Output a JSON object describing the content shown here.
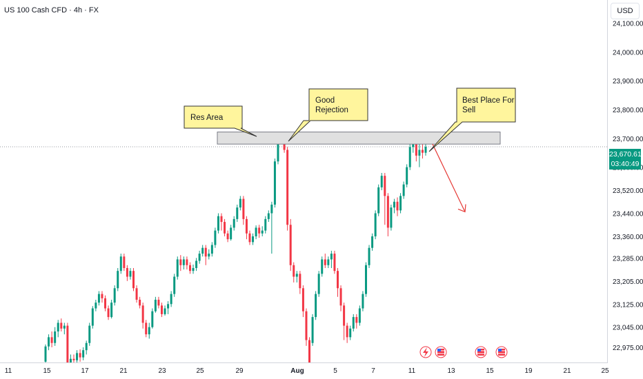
{
  "header": {
    "symbol_line": "US 100 Cash CFD · 4h · FX",
    "currency": "USD"
  },
  "last_price": {
    "value": "23,670.61",
    "countdown": "03:40:49",
    "color": "#089981"
  },
  "colors": {
    "up": "#089981",
    "down": "#f23645",
    "grid_line": "#d1d4dc",
    "callout_fill": "#fff59d",
    "zone_fill": "#e0e0e0",
    "arrow": "#e53935"
  },
  "annotations": {
    "res_area": "Res Area",
    "good_rejection": [
      "Good",
      "Rejection"
    ],
    "best_place": [
      "Best Place For",
      "Sell"
    ]
  },
  "event_icons": [
    "flash-icon",
    "us-flag-icon",
    "us-flag-icon",
    "us-flag-icon"
  ],
  "chart_data": {
    "type": "candlestick",
    "title": "US 100 Cash CFD · 4h · FX",
    "y_unit": "USD",
    "x_ticks": [
      "11",
      "15",
      "17",
      "19",
      "21",
      "23",
      "25",
      "27",
      "29",
      "Aug",
      "3",
      "5",
      "7",
      "9",
      "11",
      "13",
      "15",
      "17",
      "19",
      "21",
      "23",
      "25"
    ],
    "x_tick_labels_visible": [
      "11",
      "15",
      "17",
      "21",
      "23",
      "25",
      "29",
      "Aug",
      "5",
      "7",
      "11",
      "13",
      "15",
      "19",
      "21",
      "25"
    ],
    "y_ticks": [
      22975,
      23045,
      23125,
      23205,
      23285,
      23360,
      23440,
      23520,
      23600,
      23700,
      23800,
      23900,
      24000,
      24100
    ],
    "y_tick_labels": [
      "22,975.00",
      "23,045.00",
      "23,125.00",
      "23,205.00",
      "23,285.00",
      "23,360.00",
      "23,440.00",
      "23,520.00",
      "23,600.00",
      "23,700.00",
      "23,800.00",
      "23,900.00",
      "24,000.00",
      "24,100.00"
    ],
    "y_range": [
      22920,
      24180
    ],
    "resistance_zone": [
      23680,
      23722
    ],
    "last_price": 23670.61,
    "projection_target": 23445,
    "candles": [
      [
        22925,
        22978,
        22905,
        22985
      ],
      [
        22978,
        23010,
        22965,
        23020
      ],
      [
        23010,
        22990,
        22975,
        23030
      ],
      [
        22990,
        23030,
        22980,
        23045
      ],
      [
        23030,
        23060,
        23010,
        23070
      ],
      [
        23060,
        23040,
        23030,
        23075
      ],
      [
        23040,
        23050,
        23020,
        23060
      ],
      [
        23050,
        22920,
        22900,
        23060
      ],
      [
        22920,
        22935,
        22905,
        22950
      ],
      [
        22935,
        22930,
        22915,
        22950
      ],
      [
        22930,
        22955,
        22920,
        22965
      ],
      [
        22955,
        22940,
        22925,
        22968
      ],
      [
        22940,
        22965,
        22930,
        22975
      ],
      [
        22965,
        22990,
        22950,
        22998
      ],
      [
        22990,
        23050,
        22980,
        23060
      ],
      [
        23050,
        23110,
        23040,
        23118
      ],
      [
        23110,
        23130,
        23100,
        23140
      ],
      [
        23130,
        23160,
        23120,
        23170
      ],
      [
        23160,
        23145,
        23130,
        23170
      ],
      [
        23145,
        23110,
        23100,
        23155
      ],
      [
        23110,
        23080,
        23070,
        23120
      ],
      [
        23080,
        23130,
        23075,
        23140
      ],
      [
        23130,
        23180,
        23120,
        23190
      ],
      [
        23180,
        23240,
        23170,
        23250
      ],
      [
        23240,
        23290,
        23230,
        23300
      ],
      [
        23290,
        23250,
        23240,
        23300
      ],
      [
        23250,
        23220,
        23205,
        23260
      ],
      [
        23220,
        23240,
        23210,
        23250
      ],
      [
        23240,
        23180,
        23170,
        23250
      ],
      [
        23180,
        23140,
        23130,
        23190
      ],
      [
        23140,
        23120,
        23110,
        23150
      ],
      [
        23120,
        23060,
        23040,
        23130
      ],
      [
        23060,
        23020,
        23010,
        23070
      ],
      [
        23020,
        23045,
        23005,
        23060
      ],
      [
        23045,
        23100,
        23040,
        23110
      ],
      [
        23100,
        23140,
        23095,
        23150
      ],
      [
        23140,
        23120,
        23110,
        23150
      ],
      [
        23120,
        23090,
        23080,
        23130
      ],
      [
        23090,
        23110,
        23085,
        23120
      ],
      [
        23110,
        23125,
        23090,
        23135
      ],
      [
        23125,
        23160,
        23115,
        23170
      ],
      [
        23160,
        23220,
        23150,
        23230
      ],
      [
        23220,
        23280,
        23210,
        23290
      ],
      [
        23280,
        23260,
        23240,
        23295
      ],
      [
        23260,
        23280,
        23245,
        23290
      ],
      [
        23280,
        23260,
        23245,
        23290
      ],
      [
        23260,
        23240,
        23230,
        23270
      ],
      [
        23240,
        23250,
        23230,
        23262
      ],
      [
        23250,
        23275,
        23240,
        23285
      ],
      [
        23275,
        23300,
        23265,
        23310
      ],
      [
        23300,
        23320,
        23290,
        23330
      ],
      [
        23320,
        23290,
        23260,
        23330
      ],
      [
        23290,
        23300,
        23280,
        23315
      ],
      [
        23300,
        23330,
        23290,
        23340
      ],
      [
        23330,
        23380,
        23320,
        23390
      ],
      [
        23380,
        23430,
        23370,
        23440
      ],
      [
        23430,
        23410,
        23380,
        23440
      ],
      [
        23410,
        23370,
        23360,
        23420
      ],
      [
        23370,
        23350,
        23340,
        23380
      ],
      [
        23350,
        23390,
        23345,
        23400
      ],
      [
        23390,
        23420,
        23380,
        23430
      ],
      [
        23420,
        23460,
        23410,
        23470
      ],
      [
        23460,
        23490,
        23450,
        23500
      ],
      [
        23490,
        23420,
        23400,
        23500
      ],
      [
        23420,
        23370,
        23350,
        23430
      ],
      [
        23370,
        23340,
        23330,
        23380
      ],
      [
        23340,
        23360,
        23330,
        23370
      ],
      [
        23360,
        23390,
        23350,
        23398
      ],
      [
        23390,
        23370,
        23355,
        23400
      ],
      [
        23370,
        23380,
        23360,
        23395
      ],
      [
        23380,
        23420,
        23370,
        23430
      ],
      [
        23420,
        23440,
        23410,
        23450
      ],
      [
        23440,
        23470,
        23300,
        23480
      ],
      [
        23470,
        23620,
        23460,
        23630
      ],
      [
        23620,
        23690,
        23610,
        23700
      ],
      [
        23690,
        23700,
        23680,
        23712
      ],
      [
        23700,
        23660,
        23650,
        23710
      ],
      [
        23660,
        23400,
        23380,
        23670
      ],
      [
        23400,
        23260,
        23240,
        23420
      ],
      [
        23260,
        23220,
        23200,
        23270
      ],
      [
        23220,
        23230,
        23200,
        23240
      ],
      [
        23230,
        23180,
        23160,
        23240
      ],
      [
        23180,
        23100,
        23080,
        23190
      ],
      [
        23100,
        23000,
        22980,
        23110
      ],
      [
        23000,
        22920,
        22900,
        23010
      ],
      [
        22990,
        23080,
        22980,
        23090
      ],
      [
        23080,
        23160,
        23070,
        23170
      ],
      [
        23160,
        23230,
        23150,
        23240
      ],
      [
        23230,
        23280,
        23220,
        23290
      ],
      [
        23280,
        23260,
        23250,
        23300
      ],
      [
        23260,
        23280,
        23250,
        23290
      ],
      [
        23280,
        23300,
        23250,
        23310
      ],
      [
        23300,
        23240,
        23230,
        23310
      ],
      [
        23240,
        23180,
        23150,
        23250
      ],
      [
        23180,
        23120,
        23100,
        23190
      ],
      [
        23120,
        23050,
        23000,
        23130
      ],
      [
        23050,
        23010,
        22990,
        23060
      ],
      [
        23010,
        23040,
        23000,
        23050
      ],
      [
        23040,
        23080,
        23030,
        23090
      ],
      [
        23080,
        23060,
        23040,
        23090
      ],
      [
        23060,
        23110,
        23050,
        23120
      ],
      [
        23110,
        23160,
        23100,
        23170
      ],
      [
        23160,
        23260,
        23150,
        23270
      ],
      [
        23260,
        23320,
        23250,
        23330
      ],
      [
        23320,
        23360,
        23310,
        23370
      ],
      [
        23360,
        23440,
        23350,
        23450
      ],
      [
        23440,
        23530,
        23430,
        23540
      ],
      [
        23530,
        23570,
        23520,
        23580
      ],
      [
        23570,
        23500,
        23400,
        23580
      ],
      [
        23500,
        23390,
        23360,
        23510
      ],
      [
        23390,
        23460,
        23380,
        23470
      ],
      [
        23460,
        23480,
        23440,
        23490
      ],
      [
        23480,
        23450,
        23430,
        23495
      ],
      [
        23450,
        23500,
        23440,
        23510
      ],
      [
        23500,
        23540,
        23490,
        23550
      ],
      [
        23540,
        23600,
        23530,
        23610
      ],
      [
        23600,
        23670,
        23590,
        23680
      ],
      [
        23670,
        23690,
        23650,
        23700
      ],
      [
        23690,
        23640,
        23620,
        23700
      ],
      [
        23640,
        23660,
        23600,
        23680
      ],
      [
        23660,
        23650,
        23630,
        23690
      ],
      [
        23650,
        23670.61,
        23640,
        23680
      ]
    ]
  }
}
